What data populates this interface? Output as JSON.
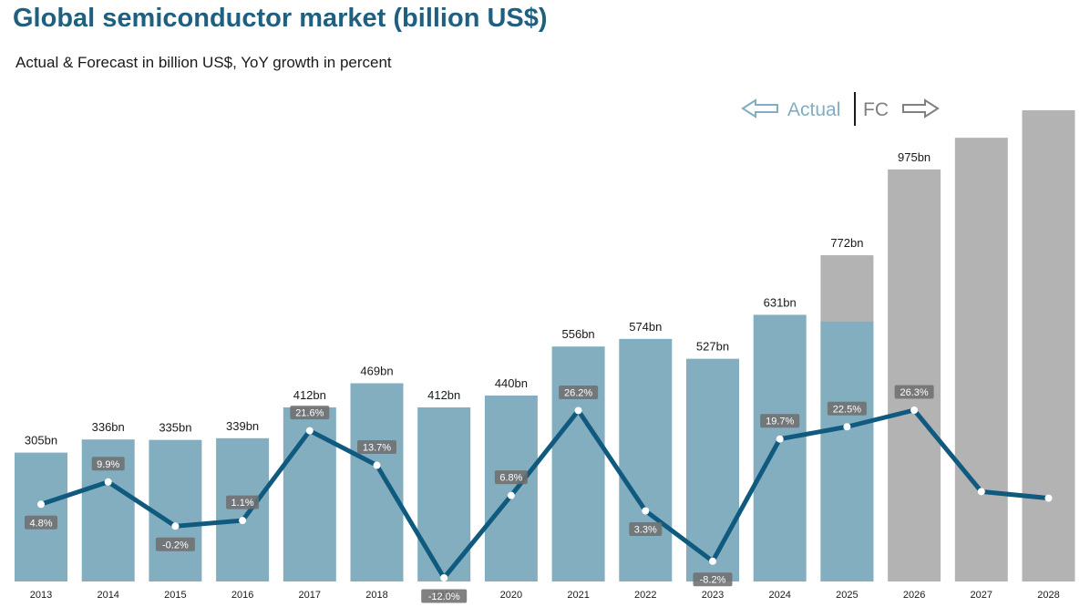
{
  "title": "Global semiconductor market (billion US$)",
  "subtitle": "Actual & Forecast in billion US$, YoY growth in percent",
  "legend": {
    "actual_label": "Actual",
    "forecast_label": "FC"
  },
  "colors": {
    "actual_bar": "#82aec0",
    "forecast_bar": "#b3b3b3",
    "growth_line": "#0f5a7e",
    "growth_label_bg": "#707070",
    "title": "#1f5f7f"
  },
  "chart_data": {
    "type": "bar",
    "categories": [
      "2013",
      "2014",
      "2015",
      "2016",
      "2017",
      "2018",
      "2019",
      "2020",
      "2021",
      "2022",
      "2023",
      "2024",
      "2025",
      "2026",
      "2027",
      "2028"
    ],
    "values": [
      305,
      336,
      335,
      339,
      412,
      469,
      412,
      440,
      556,
      574,
      527,
      631,
      772,
      975,
      1050,
      1115
    ],
    "actual_part": [
      305,
      336,
      335,
      339,
      412,
      469,
      412,
      440,
      556,
      574,
      527,
      631,
      615,
      0,
      0,
      0
    ],
    "status": [
      "actual",
      "actual",
      "actual",
      "actual",
      "actual",
      "actual",
      "actual",
      "actual",
      "actual",
      "actual",
      "actual",
      "actual",
      "actual",
      "forecast",
      "forecast",
      "forecast"
    ],
    "value_labels": [
      "305bn",
      "336bn",
      "335bn",
      "339bn",
      "412bn",
      "469bn",
      "412bn",
      "440bn",
      "556bn",
      "574bn",
      "527bn",
      "631bn",
      "772bn",
      "975bn",
      "",
      ""
    ],
    "growth": [
      4.8,
      9.9,
      -0.2,
      1.1,
      21.6,
      13.7,
      -12.0,
      6.8,
      26.2,
      3.3,
      -8.2,
      19.7,
      22.5,
      26.3,
      7.7,
      6.2
    ],
    "growth_labels": [
      "4.8%",
      "9.9%",
      "-0.2%",
      "1.1%",
      "21.6%",
      "13.7%",
      "-12.0%",
      "6.8%",
      "26.2%",
      "3.3%",
      "-8.2%",
      "19.7%",
      "22.5%",
      "26.3%",
      "",
      ""
    ],
    "ylim": [
      0,
      1115
    ],
    "growth_ylim": [
      -12,
      26.3
    ],
    "grid": false,
    "legend_position": "top-right"
  }
}
